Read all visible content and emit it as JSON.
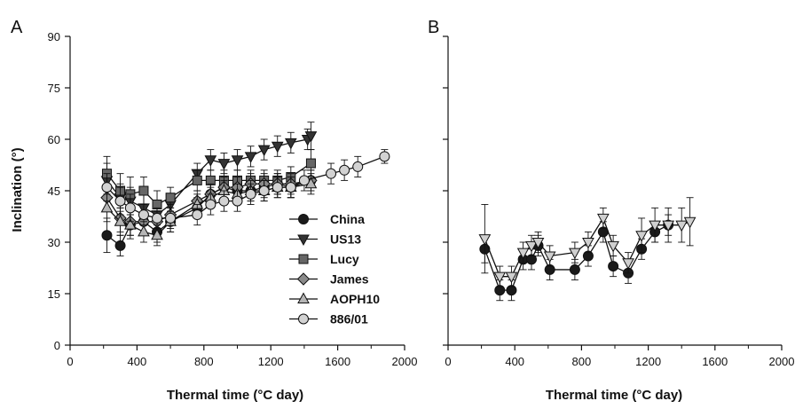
{
  "chart_data": [
    {
      "panel_label": "A",
      "type": "line",
      "xlabel": "Thermal time (°C day)",
      "ylabel": "Inclination (°)",
      "xlim": [
        0,
        2000
      ],
      "ylim": [
        0,
        90
      ],
      "xticks": [
        0,
        400,
        800,
        1200,
        1600,
        2000
      ],
      "yticks": [
        0,
        15,
        30,
        45,
        60,
        75,
        90
      ],
      "grid": false,
      "legend": "center-right, inside plot",
      "series": [
        {
          "name": "China",
          "marker": "circle",
          "fill": "#1a1a1a",
          "x": [
            220,
            300,
            360,
            440,
            520,
            600,
            760,
            840,
            920,
            1000,
            1080,
            1160,
            1240,
            1320,
            1440
          ],
          "y": [
            32,
            29,
            35,
            36,
            33,
            36,
            40,
            44,
            46,
            45,
            45,
            46,
            47,
            46,
            48
          ],
          "err": [
            5,
            3,
            3,
            3,
            3,
            3,
            3,
            3,
            3,
            3,
            3,
            3,
            3,
            3,
            3
          ]
        },
        {
          "name": "US13",
          "marker": "triangle-down",
          "fill": "#333333",
          "x": [
            220,
            300,
            360,
            440,
            520,
            600,
            760,
            840,
            920,
            1000,
            1080,
            1160,
            1240,
            1320,
            1420,
            1440
          ],
          "y": [
            48,
            43,
            42,
            40,
            38,
            41,
            50,
            54,
            53,
            54,
            55,
            57,
            58,
            59,
            60,
            61
          ],
          "err": [
            5,
            4,
            4,
            4,
            4,
            3,
            3,
            3,
            3,
            3,
            3,
            3,
            3,
            3,
            3,
            4
          ]
        },
        {
          "name": "Lucy",
          "marker": "square",
          "fill": "#666666",
          "x": [
            220,
            300,
            360,
            440,
            520,
            600,
            760,
            840,
            920,
            1000,
            1080,
            1160,
            1240,
            1320,
            1440
          ],
          "y": [
            50,
            45,
            44,
            45,
            41,
            43,
            48,
            48,
            48,
            48,
            48,
            48,
            48,
            49,
            53
          ],
          "err": [
            5,
            5,
            5,
            4,
            4,
            3,
            3,
            3,
            3,
            3,
            3,
            3,
            3,
            3,
            4
          ]
        },
        {
          "name": "James",
          "marker": "diamond",
          "fill": "#8a8a8a",
          "x": [
            220,
            300,
            360,
            440,
            520,
            600,
            760,
            840,
            920,
            1000,
            1080,
            1160,
            1240,
            1320,
            1440
          ],
          "y": [
            43,
            37,
            36,
            36,
            36,
            38,
            42,
            44,
            46,
            46,
            47,
            47,
            47,
            47,
            48
          ],
          "err": [
            4,
            4,
            4,
            3,
            3,
            3,
            3,
            3,
            3,
            3,
            3,
            3,
            3,
            3,
            3
          ]
        },
        {
          "name": "AOPH10",
          "marker": "triangle-up",
          "fill": "#b5b5b5",
          "x": [
            220,
            300,
            360,
            440,
            520,
            600,
            760,
            840,
            920,
            1000,
            1080,
            1160,
            1240,
            1320,
            1440
          ],
          "y": [
            40,
            36,
            35,
            33,
            32,
            36,
            41,
            43,
            45,
            44,
            45,
            45,
            46,
            46,
            47
          ],
          "err": [
            4,
            4,
            4,
            3,
            3,
            3,
            3,
            3,
            3,
            3,
            3,
            3,
            3,
            3,
            3
          ]
        },
        {
          "name": "886/01",
          "marker": "circle",
          "fill": "#d2d2d2",
          "x": [
            220,
            300,
            360,
            440,
            520,
            600,
            760,
            840,
            920,
            1000,
            1080,
            1160,
            1240,
            1320,
            1400,
            1560,
            1640,
            1720,
            1880
          ],
          "y": [
            46,
            42,
            40,
            38,
            37,
            37,
            38,
            41,
            42,
            42,
            44,
            45,
            46,
            46,
            48,
            50,
            51,
            52,
            55
          ],
          "err": [
            4,
            4,
            4,
            3,
            3,
            3,
            3,
            3,
            3,
            3,
            3,
            3,
            3,
            3,
            3,
            3,
            3,
            3,
            2
          ]
        }
      ]
    },
    {
      "panel_label": "B",
      "type": "line",
      "xlabel": "Thermal time (°C day)",
      "ylabel": "",
      "xlim": [
        0,
        2000
      ],
      "ylim": [
        0,
        90
      ],
      "xticks": [
        0,
        400,
        800,
        1200,
        1600,
        2000
      ],
      "yticks": [
        0,
        15,
        30,
        45,
        60,
        75,
        90
      ],
      "show_ytick_labels": false,
      "grid": false,
      "legend": "none",
      "series": [
        {
          "marker": "circle",
          "fill": "#1a1a1a",
          "x": [
            220,
            310,
            380,
            450,
            500,
            540,
            610,
            760,
            840,
            930,
            990,
            1080,
            1160,
            1240,
            1320
          ],
          "y": [
            28,
            16,
            16,
            25,
            25,
            29,
            22,
            22,
            26,
            33,
            23,
            21,
            28,
            33,
            35
          ],
          "err": [
            4,
            3,
            3,
            3,
            3,
            3,
            3,
            3,
            3,
            3,
            3,
            3,
            3,
            3,
            3
          ]
        },
        {
          "marker": "triangle-down",
          "fill": "#cfcfcf",
          "x": [
            220,
            310,
            380,
            450,
            500,
            540,
            610,
            760,
            840,
            930,
            990,
            1080,
            1160,
            1240,
            1320,
            1400,
            1450
          ],
          "y": [
            31,
            20,
            20,
            27,
            29,
            30,
            26,
            27,
            30,
            37,
            29,
            24,
            32,
            35,
            35,
            35,
            36
          ],
          "err": [
            10,
            3,
            3,
            3,
            3,
            3,
            3,
            3,
            3,
            3,
            3,
            3,
            5,
            5,
            5,
            5,
            7
          ]
        }
      ]
    }
  ]
}
